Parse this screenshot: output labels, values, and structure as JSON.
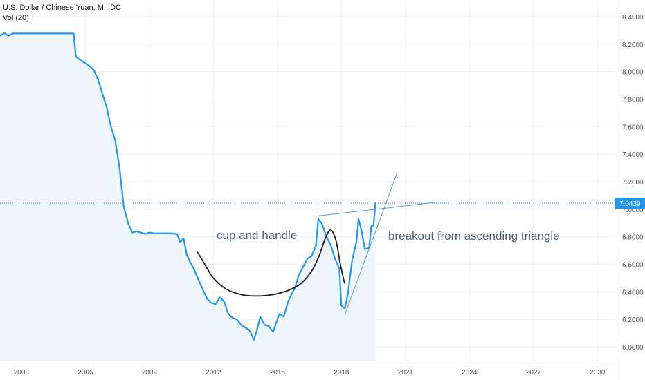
{
  "legend": {
    "symbol": "U.S. Dollar / Chinese Yuan, M, IDC",
    "indicator": "Vol (20)"
  },
  "price_tag": "7.0439",
  "annotations": {
    "cup": "cup and handle",
    "breakout": "breakout from ascending triangle"
  },
  "colors": {
    "line": "#2196f3",
    "area": "#eef5fc",
    "grid": "#eef1f4",
    "axis_text": "#50535e",
    "tag": "#2196f3",
    "drawing": "#5b9bd5",
    "cup": "#1b1b1b",
    "annotation_text": "#4f6070"
  },
  "chart_data": {
    "type": "line",
    "title": "U.S. Dollar / Chinese Yuan, M, IDC",
    "xlim": [
      2002.0,
      2030.8
    ],
    "ylim": [
      5.9,
      8.52
    ],
    "x_ticks": [
      "2003",
      "2006",
      "2009",
      "2012",
      "2015",
      "2018",
      "2021",
      "2024",
      "2027",
      "2030"
    ],
    "y_ticks": [
      "6.0000",
      "6.2000",
      "6.4000",
      "6.6000",
      "6.8000",
      "7.0000",
      "7.2000",
      "7.4000",
      "7.6000",
      "7.8000",
      "8.0000",
      "8.2000",
      "8.4000"
    ],
    "last_value": 7.0439,
    "grid": true,
    "series": [
      {
        "x": [
          2002.0,
          2002.2,
          2002.4,
          2002.6,
          2003.0,
          2004.0,
          2005.0,
          2005.45,
          2005.55,
          2005.8,
          2006.0,
          2006.2,
          2006.4,
          2006.6,
          2006.8,
          2007.0,
          2007.2,
          2007.4,
          2007.6,
          2007.8,
          2008.0,
          2008.2,
          2008.4,
          2008.6,
          2008.8,
          2009.0,
          2009.2,
          2009.5,
          2010.0,
          2010.3,
          2010.45,
          2010.6,
          2010.75,
          2010.9,
          2011.1,
          2011.3,
          2011.5,
          2011.7,
          2011.9,
          2012.1,
          2012.3,
          2012.5,
          2012.7,
          2012.9,
          2013.1,
          2013.3,
          2013.5,
          2013.7,
          2013.9,
          2014.0,
          2014.2,
          2014.4,
          2014.6,
          2014.8,
          2015.0,
          2015.1,
          2015.3,
          2015.5,
          2015.62,
          2015.8,
          2016.0,
          2016.2,
          2016.4,
          2016.6,
          2016.8,
          2016.92,
          2017.1,
          2017.3,
          2017.5,
          2017.7,
          2017.9,
          2018.0,
          2018.15,
          2018.3,
          2018.5,
          2018.7,
          2018.8,
          2018.95,
          2019.1,
          2019.3,
          2019.4,
          2019.5,
          2019.6
        ],
        "y": [
          8.26,
          8.28,
          8.26,
          8.277,
          8.277,
          8.277,
          8.277,
          8.277,
          8.11,
          8.08,
          8.06,
          8.04,
          8.01,
          7.94,
          7.84,
          7.74,
          7.6,
          7.5,
          7.3,
          7.02,
          6.9,
          6.83,
          6.84,
          6.83,
          6.82,
          6.83,
          6.825,
          6.825,
          6.825,
          6.82,
          6.76,
          6.79,
          6.67,
          6.62,
          6.56,
          6.49,
          6.42,
          6.35,
          6.32,
          6.31,
          6.36,
          6.33,
          6.24,
          6.21,
          6.2,
          6.16,
          6.14,
          6.12,
          6.05,
          6.1,
          6.22,
          6.16,
          6.15,
          6.11,
          6.2,
          6.24,
          6.22,
          6.33,
          6.37,
          6.42,
          6.52,
          6.58,
          6.64,
          6.66,
          6.73,
          6.93,
          6.89,
          6.8,
          6.74,
          6.64,
          6.57,
          6.3,
          6.28,
          6.38,
          6.63,
          6.76,
          6.93,
          6.84,
          6.71,
          6.72,
          6.88,
          6.88,
          7.05
        ]
      }
    ],
    "drawings": {
      "cup_curve": {
        "x": [
          2011.25,
          2011.6,
          2012.0,
          2012.6,
          2013.3,
          2014.0,
          2014.8,
          2015.5,
          2016.1,
          2016.6,
          2016.95,
          2017.25,
          2017.5,
          2017.75,
          2017.95,
          2018.15
        ],
        "y": [
          6.69,
          6.6,
          6.5,
          6.42,
          6.38,
          6.37,
          6.38,
          6.41,
          6.46,
          6.55,
          6.66,
          6.79,
          6.85,
          6.77,
          6.6,
          6.46
        ]
      },
      "triangle_upper": {
        "x": [
          2016.8,
          2022.4
        ],
        "y": [
          6.95,
          7.05
        ]
      },
      "triangle_lower": {
        "x": [
          2018.15,
          2020.6
        ],
        "y": [
          6.23,
          7.26
        ]
      }
    }
  }
}
